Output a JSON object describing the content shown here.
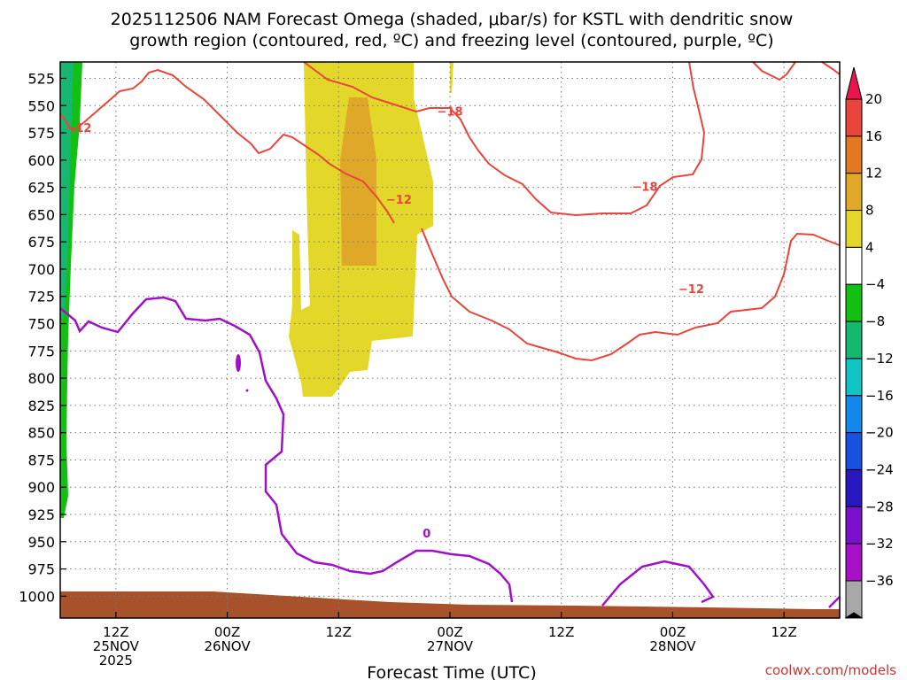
{
  "chart_data": {
    "type": "heatmap",
    "title_line1": "2025112506 NAM Forecast Omega (shaded, μbar/s) for KSTL with dendritic snow",
    "title_line2": "growth region (contoured, red, ºC) and freezing level (contoured, purple, ºC)",
    "xlabel": "Forecast Time (UTC)",
    "x_range_hours": [
      0,
      84
    ],
    "x_ticks": [
      {
        "h": 6,
        "l1": "12Z",
        "l2": "25NOV",
        "l3": "2025"
      },
      {
        "h": 18,
        "l1": "00Z",
        "l2": "26NOV",
        "l3": ""
      },
      {
        "h": 30,
        "l1": "12Z",
        "l2": "",
        "l3": ""
      },
      {
        "h": 42,
        "l1": "00Z",
        "l2": "27NOV",
        "l3": ""
      },
      {
        "h": 54,
        "l1": "12Z",
        "l2": "",
        "l3": ""
      },
      {
        "h": 66,
        "l1": "00Z",
        "l2": "28NOV",
        "l3": ""
      },
      {
        "h": 78,
        "l1": "12Z",
        "l2": "",
        "l3": ""
      }
    ],
    "y_ticks_hpa": [
      525,
      550,
      575,
      600,
      625,
      650,
      675,
      700,
      725,
      750,
      775,
      800,
      825,
      850,
      875,
      900,
      925,
      950,
      975,
      1000
    ],
    "p_range_hpa": [
      510,
      1020
    ],
    "colorbar": {
      "labels": [
        "20",
        "16",
        "12",
        "8",
        "4",
        "−4",
        "−8",
        "−12",
        "−16",
        "−20",
        "−24",
        "−28",
        "−32",
        "−36"
      ],
      "colors": [
        "#e8154e",
        "#e8463c",
        "#e37722",
        "#e0a828",
        "#e3d82a",
        "#ffffff",
        "#12c012",
        "#14b870",
        "#12c4c4",
        "#1288ec",
        "#1850e0",
        "#2818c0",
        "#7a10cc",
        "#a810c8",
        "#a8a8a8"
      ]
    },
    "contour_labels": [
      {
        "text": "−12",
        "color": "#e8463c",
        "h": 2.0,
        "p": 570
      },
      {
        "text": "−18",
        "color": "#e8463c",
        "h": 42.0,
        "p": 555
      },
      {
        "text": "−12",
        "color": "#e8463c",
        "h": 36.5,
        "p": 636
      },
      {
        "text": "−18",
        "color": "#e8463c",
        "h": 63.0,
        "p": 624
      },
      {
        "text": "−12",
        "color": "#e8463c",
        "h": 68.0,
        "p": 718
      },
      {
        "text": "0",
        "color": "#a010c8",
        "h": 39.5,
        "p": 942
      }
    ],
    "watermark": "coolwx.com/models",
    "watermark_color": "#cc3333"
  }
}
